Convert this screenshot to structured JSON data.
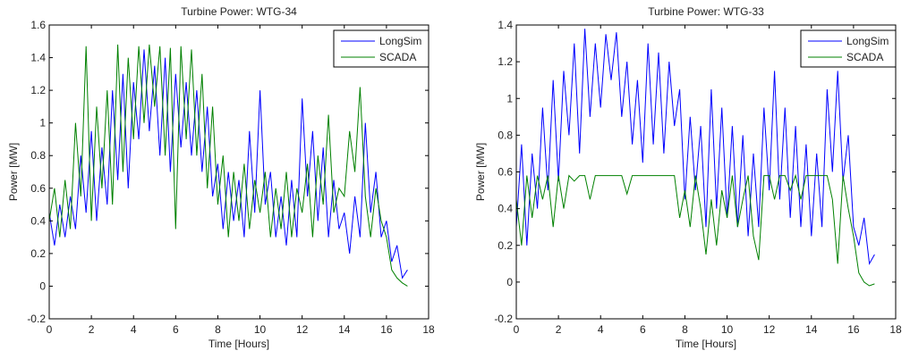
{
  "chart_data": [
    {
      "type": "line",
      "title": "Turbine Power: WTG-34",
      "xlabel": "Time [Hours]",
      "ylabel": "Power [MW]",
      "xlim": [
        0,
        18
      ],
      "ylim": [
        -0.2,
        1.6
      ],
      "xticks": [
        0,
        2,
        4,
        6,
        8,
        10,
        12,
        14,
        16,
        18
      ],
      "yticks": [
        -0.2,
        0,
        0.2,
        0.4,
        0.6,
        0.8,
        1,
        1.2,
        1.4,
        1.6
      ],
      "ytick_labels": [
        "-0.2",
        "0",
        "0.2",
        "0.4",
        "0.6",
        "0.8",
        "1",
        "1.2",
        "1.4",
        "1.6"
      ],
      "legend_position": "top-right",
      "x_start": 0,
      "x_step": 0.25,
      "series": [
        {
          "name": "LongSim",
          "color": "#0000ff",
          "values": [
            0.45,
            0.25,
            0.5,
            0.3,
            0.55,
            0.35,
            0.8,
            0.45,
            0.95,
            0.4,
            0.85,
            0.5,
            1.2,
            0.65,
            1.3,
            0.6,
            1.25,
            0.9,
            1.45,
            0.95,
            1.35,
            0.8,
            1.4,
            0.7,
            1.3,
            0.85,
            1.25,
            0.8,
            1.2,
            0.7,
            1.1,
            0.55,
            0.75,
            0.35,
            0.7,
            0.4,
            0.65,
            0.3,
            0.95,
            0.45,
            1.2,
            0.5,
            0.7,
            0.3,
            0.55,
            0.25,
            0.65,
            0.3,
            1.15,
            0.55,
            0.95,
            0.4,
            0.85,
            0.3,
            0.65,
            0.35,
            0.45,
            0.2,
            0.55,
            0.3,
            1.0,
            0.45,
            0.7,
            0.3,
            0.4,
            0.15,
            0.25,
            0.05,
            0.1
          ]
        },
        {
          "name": "SCADA",
          "color": "#008000",
          "values": [
            0.4,
            0.6,
            0.3,
            0.65,
            0.35,
            1.0,
            0.55,
            1.47,
            0.4,
            1.1,
            0.6,
            1.2,
            0.5,
            1.48,
            0.7,
            1.4,
            0.9,
            1.47,
            1.0,
            1.48,
            1.1,
            1.47,
            0.8,
            1.46,
            0.35,
            1.47,
            0.9,
            1.45,
            0.8,
            1.3,
            0.6,
            1.1,
            0.5,
            0.8,
            0.3,
            0.7,
            0.4,
            0.75,
            0.35,
            0.65,
            0.45,
            0.7,
            0.3,
            0.6,
            0.35,
            0.7,
            0.3,
            0.6,
            0.45,
            0.75,
            0.3,
            0.8,
            0.5,
            1.05,
            0.45,
            0.6,
            0.55,
            0.95,
            0.7,
            1.22,
            0.55,
            0.3,
            0.6,
            0.4,
            0.3,
            0.1,
            0.05,
            0.02,
            0.0
          ]
        }
      ]
    },
    {
      "type": "line",
      "title": "Turbine Power: WTG-33",
      "xlabel": "Time [Hours]",
      "ylabel": "Power [MW]",
      "xlim": [
        0,
        18
      ],
      "ylim": [
        -0.2,
        1.4
      ],
      "xticks": [
        0,
        2,
        4,
        6,
        8,
        10,
        12,
        14,
        16,
        18
      ],
      "yticks": [
        -0.2,
        0,
        0.2,
        0.4,
        0.6,
        0.8,
        1,
        1.2,
        1.4
      ],
      "ytick_labels": [
        "-0.2",
        "0",
        "0.2",
        "0.4",
        "0.6",
        "0.8",
        "1",
        "1.2",
        "1.4"
      ],
      "legend_position": "top-right",
      "x_start": 0,
      "x_step": 0.25,
      "series": [
        {
          "name": "LongSim",
          "color": "#0000ff",
          "values": [
            0.3,
            0.75,
            0.2,
            0.7,
            0.4,
            0.95,
            0.5,
            1.1,
            0.55,
            1.15,
            0.8,
            1.3,
            0.7,
            1.38,
            0.9,
            1.3,
            0.95,
            1.35,
            1.1,
            1.36,
            0.9,
            1.2,
            0.75,
            1.1,
            0.65,
            1.3,
            0.75,
            1.25,
            0.7,
            1.2,
            0.85,
            1.05,
            0.45,
            0.9,
            0.5,
            0.85,
            0.3,
            1.05,
            0.4,
            0.95,
            0.35,
            0.85,
            0.3,
            0.8,
            0.25,
            0.7,
            0.3,
            0.95,
            0.5,
            1.15,
            0.45,
            0.95,
            0.35,
            0.85,
            0.3,
            0.75,
            0.25,
            0.7,
            0.3,
            1.05,
            0.6,
            1.15,
            0.55,
            0.8,
            0.3,
            0.2,
            0.35,
            0.1,
            0.15
          ]
        },
        {
          "name": "SCADA",
          "color": "#008000",
          "values": [
            0.45,
            0.2,
            0.58,
            0.35,
            0.58,
            0.45,
            0.58,
            0.3,
            0.58,
            0.4,
            0.58,
            0.55,
            0.58,
            0.58,
            0.45,
            0.58,
            0.58,
            0.58,
            0.58,
            0.58,
            0.58,
            0.48,
            0.58,
            0.58,
            0.58,
            0.58,
            0.58,
            0.58,
            0.58,
            0.58,
            0.58,
            0.35,
            0.5,
            0.3,
            0.58,
            0.4,
            0.15,
            0.45,
            0.2,
            0.5,
            0.35,
            0.58,
            0.3,
            0.45,
            0.58,
            0.25,
            0.12,
            0.58,
            0.58,
            0.45,
            0.58,
            0.58,
            0.5,
            0.58,
            0.45,
            0.58,
            0.58,
            0.58,
            0.58,
            0.58,
            0.45,
            0.1,
            0.58,
            0.4,
            0.25,
            0.05,
            0.0,
            -0.02,
            -0.01
          ]
        }
      ]
    }
  ]
}
